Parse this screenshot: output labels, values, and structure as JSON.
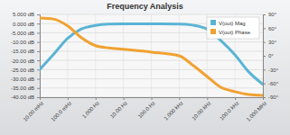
{
  "chart_data": {
    "type": "line",
    "title": "Frequency Analysis",
    "log": "x",
    "grid": true,
    "legend": "top-right",
    "x": [
      0.01,
      0.03,
      0.1,
      0.3,
      1,
      3,
      10,
      100,
      1000,
      3000,
      10000,
      30000,
      100000,
      300000,
      1000000
    ],
    "xlim": [
      0.01,
      1000000
    ],
    "xticks": [
      {
        "value": 0.01,
        "label": "10.00 mHz"
      },
      {
        "value": 0.1,
        "label": "100.0 mHz"
      },
      {
        "value": 1,
        "label": "1.000 Hz"
      },
      {
        "value": 10,
        "label": "10.00 Hz"
      },
      {
        "value": 100,
        "label": "100.0 Hz"
      },
      {
        "value": 1000,
        "label": "1.000 kHz"
      },
      {
        "value": 10000,
        "label": "10.00 kHz"
      },
      {
        "value": 100000,
        "label": "100.0 kHz"
      },
      {
        "value": 1000000,
        "label": "1.000 MHz"
      }
    ],
    "ylim": [
      -40,
      5
    ],
    "yticks": [
      {
        "value": 5,
        "label": "5.000 dB"
      },
      {
        "value": 0,
        "label": "0.000 dB"
      },
      {
        "value": -5,
        "label": "-5.000 dB"
      },
      {
        "value": -10,
        "label": "-10.00 dB"
      },
      {
        "value": -15,
        "label": "-15.00 dB"
      },
      {
        "value": -20,
        "label": "-20.00 dB"
      },
      {
        "value": -25,
        "label": "-25.00 dB"
      },
      {
        "value": -30,
        "label": "-30.00 dB"
      },
      {
        "value": -35,
        "label": "-35.00 dB"
      },
      {
        "value": -40,
        "label": "-40.00 dB"
      }
    ],
    "y2lim": [
      -90,
      90
    ],
    "y2ticks": [
      {
        "value": 90,
        "label": "90°"
      },
      {
        "value": 60,
        "label": "60°"
      },
      {
        "value": 30,
        "label": "30°"
      },
      {
        "value": 0,
        "label": "0°"
      },
      {
        "value": -30,
        "label": "-30°"
      },
      {
        "value": -60,
        "label": "-60°"
      },
      {
        "value": -90,
        "label": "-90°"
      }
    ],
    "series": [
      {
        "name": "V(out) Mag",
        "color": "#5ab4d4",
        "values": [
          -25,
          -17,
          -8,
          -3,
          -1,
          -0.3,
          -0.1,
          -0.1,
          -0.2,
          -0.8,
          -3,
          -9,
          -17,
          -26,
          -33
        ]
      },
      {
        "name": "V(out) Phase",
        "color": "#f0a232",
        "axis": "y2",
        "values": [
          82,
          80,
          65,
          40,
          22,
          17,
          14,
          8,
          0,
          -20,
          -45,
          -68,
          -78,
          -84,
          -86
        ]
      }
    ]
  }
}
